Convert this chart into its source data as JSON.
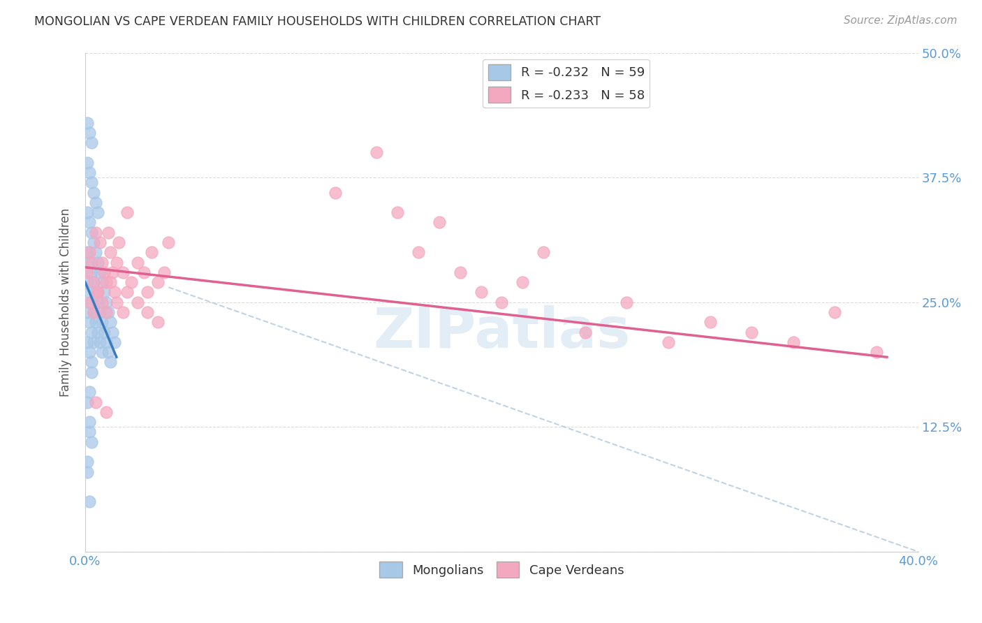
{
  "title": "MONGOLIAN VS CAPE VERDEAN FAMILY HOUSEHOLDS WITH CHILDREN CORRELATION CHART",
  "source": "Source: ZipAtlas.com",
  "ylabel": "Family Households with Children",
  "xlim": [
    0.0,
    0.4
  ],
  "ylim": [
    0.0,
    0.5
  ],
  "x_tick_positions": [
    0.0,
    0.05,
    0.1,
    0.15,
    0.2,
    0.25,
    0.3,
    0.35,
    0.4
  ],
  "x_tick_labels": [
    "0.0%",
    "",
    "",
    "",
    "",
    "",
    "",
    "",
    "40.0%"
  ],
  "y_tick_positions": [
    0.0,
    0.125,
    0.25,
    0.375,
    0.5
  ],
  "y_tick_labels": [
    "",
    "12.5%",
    "25.0%",
    "37.5%",
    "50.0%"
  ],
  "legend_mongolians": "R = -0.232   N = 59",
  "legend_capeverdeans": "R = -0.233   N = 58",
  "mongolian_color": "#a8c8e8",
  "capeverdean_color": "#f4a8c0",
  "mongolian_line_color": "#3a7abf",
  "capeverdean_line_color": "#e06090",
  "diagonal_line_color": "#b0c8e0",
  "watermark": "ZIPatlas",
  "mongolian_x": [
    0.001,
    0.001,
    0.001,
    0.001,
    0.001,
    0.001,
    0.001,
    0.002,
    0.002,
    0.002,
    0.002,
    0.002,
    0.002,
    0.002,
    0.003,
    0.003,
    0.003,
    0.003,
    0.003,
    0.003,
    0.003,
    0.004,
    0.004,
    0.004,
    0.004,
    0.004,
    0.005,
    0.005,
    0.005,
    0.005,
    0.006,
    0.006,
    0.006,
    0.006,
    0.007,
    0.007,
    0.007,
    0.008,
    0.008,
    0.008,
    0.009,
    0.009,
    0.01,
    0.01,
    0.011,
    0.011,
    0.012,
    0.012,
    0.013,
    0.014,
    0.001,
    0.002,
    0.003,
    0.001,
    0.002,
    0.003,
    0.002,
    0.001,
    0.002
  ],
  "mongolian_y": [
    0.43,
    0.39,
    0.34,
    0.3,
    0.27,
    0.24,
    0.21,
    0.42,
    0.38,
    0.33,
    0.29,
    0.26,
    0.23,
    0.2,
    0.41,
    0.37,
    0.32,
    0.28,
    0.25,
    0.22,
    0.19,
    0.36,
    0.31,
    0.27,
    0.24,
    0.21,
    0.35,
    0.3,
    0.26,
    0.23,
    0.34,
    0.29,
    0.25,
    0.22,
    0.28,
    0.24,
    0.21,
    0.27,
    0.23,
    0.2,
    0.26,
    0.22,
    0.25,
    0.21,
    0.24,
    0.2,
    0.23,
    0.19,
    0.22,
    0.21,
    0.15,
    0.12,
    0.11,
    0.08,
    0.05,
    0.18,
    0.16,
    0.09,
    0.13
  ],
  "capeverdean_x": [
    0.001,
    0.002,
    0.003,
    0.004,
    0.005,
    0.006,
    0.007,
    0.008,
    0.009,
    0.01,
    0.011,
    0.012,
    0.013,
    0.014,
    0.015,
    0.016,
    0.018,
    0.02,
    0.022,
    0.025,
    0.028,
    0.03,
    0.032,
    0.035,
    0.038,
    0.04,
    0.002,
    0.004,
    0.006,
    0.008,
    0.01,
    0.012,
    0.015,
    0.018,
    0.02,
    0.025,
    0.03,
    0.035,
    0.12,
    0.14,
    0.15,
    0.16,
    0.17,
    0.18,
    0.19,
    0.2,
    0.21,
    0.22,
    0.24,
    0.26,
    0.28,
    0.3,
    0.32,
    0.34,
    0.36,
    0.38,
    0.005,
    0.01
  ],
  "capeverdean_y": [
    0.28,
    0.3,
    0.29,
    0.27,
    0.32,
    0.26,
    0.31,
    0.29,
    0.28,
    0.27,
    0.32,
    0.3,
    0.28,
    0.26,
    0.29,
    0.31,
    0.28,
    0.34,
    0.27,
    0.29,
    0.28,
    0.26,
    0.3,
    0.27,
    0.28,
    0.31,
    0.25,
    0.24,
    0.26,
    0.25,
    0.24,
    0.27,
    0.25,
    0.24,
    0.26,
    0.25,
    0.24,
    0.23,
    0.36,
    0.4,
    0.34,
    0.3,
    0.33,
    0.28,
    0.26,
    0.25,
    0.27,
    0.3,
    0.22,
    0.25,
    0.21,
    0.23,
    0.22,
    0.21,
    0.24,
    0.2,
    0.15,
    0.14
  ],
  "mong_line_x0": 0.0,
  "mong_line_x1": 0.015,
  "mong_line_y0": 0.27,
  "mong_line_y1": 0.195,
  "cape_line_x0": 0.0,
  "cape_line_x1": 0.385,
  "cape_line_y0": 0.285,
  "cape_line_y1": 0.195,
  "diag_line_x0": 0.04,
  "diag_line_x1": 0.4,
  "diag_line_y0": 0.265,
  "diag_line_y1": 0.0
}
